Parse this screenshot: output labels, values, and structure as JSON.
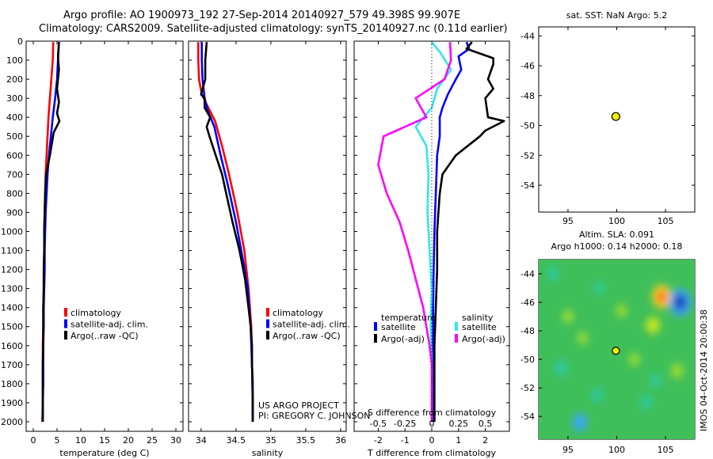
{
  "header": {
    "title_line1": "Argo profile: AO 1900973_192 27-Sep-2014 20140927_579 49.398S 99.907E",
    "title_line2": "Climatology: CARS2009. Satellite-adjusted climatology: synTS_20140927.nc (0.11d earlier)"
  },
  "credits": {
    "project": "US ARGO PROJECT",
    "pi": "PI: GREGORY C. JOHNSON",
    "stamp": "IMOS 04-Oct-2014 20:00:38"
  },
  "colors": {
    "climatology": "#ff0000",
    "satellite": "#0000ff",
    "argo": "#000000",
    "s_satellite": "#33e6e6",
    "s_argo": "#ff00ff",
    "marker": "#f0f000"
  },
  "chart_data": [
    {
      "type": "line",
      "name": "temperature",
      "xlabel": "temperature (deg C)",
      "ylabel": "",
      "xlim": [
        -1.5,
        31.5
      ],
      "ylim": [
        2050,
        0
      ],
      "xticks": [
        0,
        5,
        10,
        15,
        20,
        25,
        30
      ],
      "yticks": [
        0,
        100,
        200,
        300,
        400,
        500,
        600,
        700,
        800,
        900,
        1000,
        1100,
        1200,
        1300,
        1400,
        1500,
        1600,
        1700,
        1800,
        1900,
        2000
      ],
      "legend": {
        "placement": "lower-middle",
        "items": [
          "climatology",
          "satellite-adj. clim.",
          "Argo(..raw -QC)"
        ]
      },
      "series": [
        {
          "name": "climatology",
          "color": "#ff0000",
          "points": [
            [
              4.2,
              5
            ],
            [
              4.1,
              100
            ],
            [
              3.8,
              200
            ],
            [
              3.5,
              300
            ],
            [
              3.2,
              400
            ],
            [
              3.0,
              500
            ],
            [
              2.8,
              600
            ],
            [
              2.6,
              700
            ],
            [
              2.5,
              800
            ],
            [
              2.4,
              900
            ],
            [
              2.3,
              1000
            ],
            [
              2.3,
              1100
            ],
            [
              2.2,
              1200
            ],
            [
              2.2,
              1300
            ],
            [
              2.1,
              1400
            ],
            [
              2.1,
              1500
            ],
            [
              2.0,
              1600
            ],
            [
              2.0,
              1700
            ],
            [
              2.0,
              1800
            ],
            [
              2.0,
              1900
            ],
            [
              1.9,
              2000
            ]
          ]
        },
        {
          "name": "satellite-adj. clim.",
          "color": "#0000ff",
          "points": [
            [
              5.4,
              5
            ],
            [
              5.2,
              100
            ],
            [
              5.0,
              200
            ],
            [
              4.6,
              300
            ],
            [
              4.1,
              400
            ],
            [
              3.7,
              500
            ],
            [
              3.3,
              600
            ],
            [
              3.0,
              700
            ],
            [
              2.8,
              800
            ],
            [
              2.6,
              900
            ],
            [
              2.5,
              1000
            ],
            [
              2.4,
              1100
            ],
            [
              2.4,
              1200
            ],
            [
              2.3,
              1300
            ],
            [
              2.2,
              1400
            ],
            [
              2.2,
              1500
            ],
            [
              2.1,
              1600
            ],
            [
              2.1,
              1700
            ],
            [
              2.1,
              1800
            ],
            [
              2.0,
              1900
            ],
            [
              2.0,
              2000
            ]
          ]
        },
        {
          "name": "Argo(..raw -QC)",
          "color": "#000000",
          "points": [
            [
              5.4,
              5
            ],
            [
              5.2,
              80
            ],
            [
              5.4,
              150
            ],
            [
              5.0,
              250
            ],
            [
              5.4,
              320
            ],
            [
              5.0,
              380
            ],
            [
              5.5,
              420
            ],
            [
              4.3,
              480
            ],
            [
              3.5,
              600
            ],
            [
              2.7,
              700
            ],
            [
              2.5,
              800
            ],
            [
              2.4,
              900
            ],
            [
              2.3,
              1000
            ],
            [
              2.3,
              1100
            ],
            [
              2.2,
              1200
            ],
            [
              2.2,
              1300
            ],
            [
              2.1,
              1400
            ],
            [
              2.1,
              1500
            ],
            [
              2.1,
              1600
            ],
            [
              2.0,
              1700
            ],
            [
              2.0,
              1800
            ],
            [
              2.0,
              1900
            ],
            [
              2.0,
              2000
            ]
          ]
        }
      ]
    },
    {
      "type": "line",
      "name": "salinity",
      "xlabel": "salinity",
      "xlim": [
        33.82,
        36.08
      ],
      "ylim": [
        2050,
        0
      ],
      "xticks": [
        34,
        34.5,
        35,
        35.5,
        36
      ],
      "legend": {
        "placement": "lower-middle",
        "items": [
          "climatology",
          "satellite-adj. clim.",
          "Argo(..raw -QC)"
        ]
      },
      "series": [
        {
          "name": "climatology",
          "color": "#ff0000",
          "points": [
            [
              33.96,
              5
            ],
            [
              33.96,
              100
            ],
            [
              33.97,
              200
            ],
            [
              34.01,
              280
            ],
            [
              34.09,
              340
            ],
            [
              34.2,
              420
            ],
            [
              34.3,
              550
            ],
            [
              34.4,
              700
            ],
            [
              34.52,
              900
            ],
            [
              34.62,
              1100
            ],
            [
              34.68,
              1300
            ],
            [
              34.72,
              1500
            ],
            [
              34.73,
              1700
            ],
            [
              34.74,
              1900
            ],
            [
              34.74,
              2000
            ]
          ]
        },
        {
          "name": "satellite-adj. clim.",
          "color": "#0000ff",
          "points": [
            [
              34.01,
              5
            ],
            [
              34.01,
              100
            ],
            [
              34.02,
              200
            ],
            [
              34.05,
              300
            ],
            [
              34.09,
              360
            ],
            [
              34.19,
              450
            ],
            [
              34.28,
              600
            ],
            [
              34.38,
              750
            ],
            [
              34.5,
              950
            ],
            [
              34.6,
              1150
            ],
            [
              34.67,
              1300
            ],
            [
              34.71,
              1500
            ],
            [
              34.73,
              1700
            ],
            [
              34.74,
              1900
            ],
            [
              34.74,
              2000
            ]
          ]
        },
        {
          "name": "Argo(..raw -QC)",
          "color": "#000000",
          "points": [
            [
              34.08,
              5
            ],
            [
              34.06,
              100
            ],
            [
              34.06,
              200
            ],
            [
              34.0,
              280
            ],
            [
              34.05,
              300
            ],
            [
              34.05,
              350
            ],
            [
              34.13,
              400
            ],
            [
              34.08,
              450
            ],
            [
              34.12,
              500
            ],
            [
              34.21,
              600
            ],
            [
              34.3,
              700
            ],
            [
              34.36,
              800
            ],
            [
              34.45,
              950
            ],
            [
              34.55,
              1100
            ],
            [
              34.63,
              1250
            ],
            [
              34.68,
              1400
            ],
            [
              34.71,
              1500
            ],
            [
              34.73,
              1600
            ],
            [
              34.73,
              1700
            ],
            [
              34.74,
              1800
            ],
            [
              34.74,
              1900
            ],
            [
              34.74,
              2000
            ]
          ]
        }
      ]
    },
    {
      "type": "line",
      "name": "difference",
      "xlabel": "T difference from climatology",
      "xlabel_top": "S difference from climatology",
      "xlim": [
        -2.9,
        2.9
      ],
      "ylim": [
        2050,
        0
      ],
      "xticks": [
        -2,
        -1,
        0,
        1,
        2
      ],
      "xticks_s": [
        -0.5,
        -0.25,
        0,
        0.25,
        0.5
      ],
      "s_scale": 0.25,
      "legend": {
        "placement": "lower-middle",
        "col1_header": "temperature",
        "col2_header": "salinity",
        "col1_items": [
          "satellite",
          "Argo(-adj)"
        ],
        "col2_items": [
          "satellite",
          "Argo(-adj)"
        ]
      },
      "series": [
        {
          "name": "temperature satellite",
          "color": "#0000ff",
          "points": [
            [
              1.3,
              5
            ],
            [
              1.4,
              40
            ],
            [
              1.0,
              80
            ],
            [
              1.1,
              150
            ],
            [
              0.9,
              200
            ],
            [
              0.6,
              280
            ],
            [
              0.4,
              350
            ],
            [
              0.3,
              400
            ],
            [
              0.3,
              500
            ],
            [
              0.2,
              600
            ],
            [
              0.15,
              800
            ],
            [
              0.1,
              1000
            ],
            [
              0.07,
              1200
            ],
            [
              0.05,
              1400
            ],
            [
              0.05,
              1600
            ],
            [
              0.05,
              1800
            ],
            [
              0.05,
              2000
            ]
          ]
        },
        {
          "name": "temperature Argo(-adj)",
          "color": "#000000",
          "points": [
            [
              1.5,
              5
            ],
            [
              1.3,
              40
            ],
            [
              2.3,
              90
            ],
            [
              2.3,
              120
            ],
            [
              2.1,
              200
            ],
            [
              2.3,
              250
            ],
            [
              2.0,
              300
            ],
            [
              2.1,
              400
            ],
            [
              2.7,
              420
            ],
            [
              2.0,
              470
            ],
            [
              1.8,
              500
            ],
            [
              0.9,
              600
            ],
            [
              0.4,
              700
            ],
            [
              0.3,
              800
            ],
            [
              0.25,
              900
            ],
            [
              0.2,
              1000
            ],
            [
              0.2,
              1200
            ],
            [
              0.15,
              1400
            ],
            [
              0.1,
              1600
            ],
            [
              0.1,
              1800
            ],
            [
              0.1,
              2000
            ]
          ]
        },
        {
          "name": "salinity satellite",
          "color": "#33e6e6",
          "points": [
            [
              0.0,
              5
            ],
            [
              0.08,
              60
            ],
            [
              0.18,
              150
            ],
            [
              0.05,
              250
            ],
            [
              0.0,
              350
            ],
            [
              -0.15,
              450
            ],
            [
              -0.05,
              550
            ],
            [
              -0.03,
              700
            ],
            [
              -0.04,
              900
            ],
            [
              -0.02,
              1100
            ],
            [
              0.0,
              1300
            ],
            [
              -0.01,
              1500
            ],
            [
              0.0,
              1700
            ],
            [
              0.0,
              1900
            ],
            [
              0.0,
              2000
            ]
          ]
        },
        {
          "name": "salinity Argo(-adj)",
          "color": "#ff00ff",
          "points": [
            [
              0.17,
              5
            ],
            [
              0.18,
              100
            ],
            [
              0.12,
              200
            ],
            [
              -0.15,
              300
            ],
            [
              -0.05,
              400
            ],
            [
              -0.45,
              500
            ],
            [
              -0.5,
              650
            ],
            [
              -0.42,
              800
            ],
            [
              -0.3,
              950
            ],
            [
              -0.22,
              1100
            ],
            [
              -0.15,
              1250
            ],
            [
              -0.08,
              1400
            ],
            [
              -0.05,
              1500
            ],
            [
              -0.02,
              1600
            ],
            [
              0.0,
              1700
            ],
            [
              0.0,
              1800
            ],
            [
              0.0,
              1900
            ],
            [
              0.0,
              2000
            ]
          ]
        }
      ]
    },
    {
      "type": "scatter",
      "name": "position_map",
      "title": "sat. SST: NaN Argo: 5.2",
      "xlim": [
        92,
        108
      ],
      "ylim": [
        -55.8,
        -43.4
      ],
      "xticks": [
        95,
        100,
        105
      ],
      "yticks": [
        -44,
        -46,
        -48,
        -50,
        -52,
        -54
      ],
      "points": [
        [
          99.907,
          -49.398
        ]
      ]
    },
    {
      "type": "heatmap",
      "name": "sla_map",
      "title": "Altim. SLA: 0.091",
      "subtitle": "Argo h1000: 0.14 h2000: 0.18",
      "xlim": [
        92,
        108
      ],
      "ylim": [
        -55.6,
        -43.0
      ],
      "xticks": [
        95,
        100,
        105
      ],
      "yticks": [
        -44,
        -46,
        -48,
        -50,
        -52,
        -54
      ],
      "points": [
        [
          99.907,
          -49.398
        ]
      ],
      "anomalies": [
        {
          "lon": 104.6,
          "lat": -45.6,
          "value": 0.55
        },
        {
          "lon": 106.5,
          "lat": -46.0,
          "value": -0.7
        },
        {
          "lon": 103.7,
          "lat": -47.6,
          "value": 0.3
        },
        {
          "lon": 100.5,
          "lat": -46.6,
          "value": 0.15
        },
        {
          "lon": 96.5,
          "lat": -48.5,
          "value": 0.12
        },
        {
          "lon": 94.3,
          "lat": -50.6,
          "value": -0.25
        },
        {
          "lon": 98.0,
          "lat": -52.5,
          "value": -0.2
        },
        {
          "lon": 96.2,
          "lat": -54.4,
          "value": -0.35
        },
        {
          "lon": 103.0,
          "lat": -53.0,
          "value": -0.2
        },
        {
          "lon": 106.2,
          "lat": -50.8,
          "value": 0.22
        },
        {
          "lon": 101.8,
          "lat": -50.0,
          "value": 0.14
        },
        {
          "lon": 93.5,
          "lat": -44.0,
          "value": -0.18
        },
        {
          "lon": 98.2,
          "lat": -45.0,
          "value": -0.1
        },
        {
          "lon": 95.0,
          "lat": -47.0,
          "value": 0.15
        },
        {
          "lon": 104.0,
          "lat": -51.5,
          "value": -0.15
        }
      ]
    }
  ]
}
